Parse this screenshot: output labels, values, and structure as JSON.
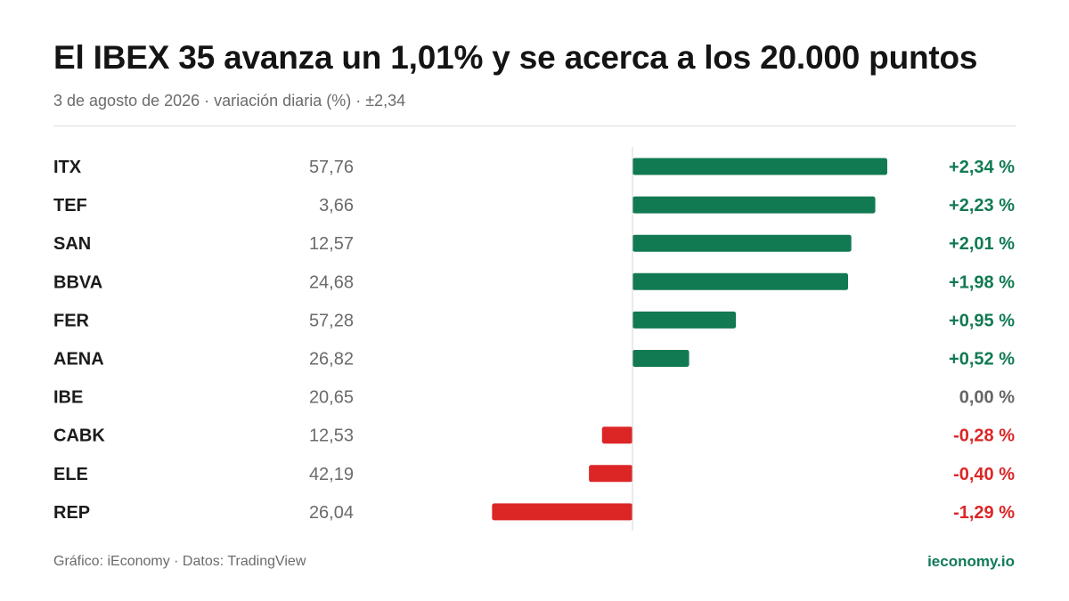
{
  "header": {
    "title": "El IBEX 35 avanza un 1,01% y se acerca a los 20.000 puntos",
    "subtitle": "3 de agosto de 2026 · variación diaria (%) · ±2,34"
  },
  "footer": {
    "credit": "Gráfico: iEconomy · Datos: TradingView",
    "brand": "ieconomy.io"
  },
  "colors": {
    "positive": "#117a52",
    "negative": "#dc2626",
    "neutral": "#666666",
    "axis": "#d4d4d4",
    "brand": "#127a5a"
  },
  "chart_data": {
    "type": "bar",
    "orientation": "horizontal",
    "title": "El IBEX 35 avanza un 1,01% y se acerca a los 20.000 puntos",
    "subtitle": "3 de agosto de 2026 · variación diaria (%) · ±2,34",
    "xlim": [
      -2.34,
      2.34
    ],
    "grid": false,
    "rows": [
      {
        "ticker": "ITX",
        "price": "57,76",
        "value": 2.34,
        "label": "+2,34 %"
      },
      {
        "ticker": "TEF",
        "price": "3,66",
        "value": 2.23,
        "label": "+2,23 %"
      },
      {
        "ticker": "SAN",
        "price": "12,57",
        "value": 2.01,
        "label": "+2,01 %"
      },
      {
        "ticker": "BBVA",
        "price": "24,68",
        "value": 1.98,
        "label": "+1,98 %"
      },
      {
        "ticker": "FER",
        "price": "57,28",
        "value": 0.95,
        "label": "+0,95 %"
      },
      {
        "ticker": "AENA",
        "price": "26,82",
        "value": 0.52,
        "label": "+0,52 %"
      },
      {
        "ticker": "IBE",
        "price": "20,65",
        "value": 0.0,
        "label": "0,00 %"
      },
      {
        "ticker": "CABK",
        "price": "12,53",
        "value": -0.28,
        "label": "-0,28 %"
      },
      {
        "ticker": "ELE",
        "price": "42,19",
        "value": -0.4,
        "label": "-0,40 %"
      },
      {
        "ticker": "REP",
        "price": "26,04",
        "value": -1.29,
        "label": "-1,29 %"
      }
    ]
  }
}
